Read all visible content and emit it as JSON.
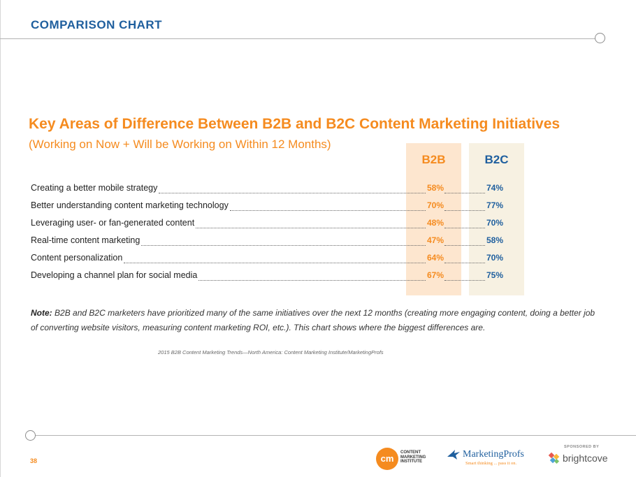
{
  "header": {
    "section_label": "COMPARISON CHART"
  },
  "chart": {
    "title": "Key Areas of Difference Between B2B and B2C Content Marketing Initiatives",
    "subtitle": "(Working on Now + Will be Working on Within 12 Months)",
    "columns": [
      "B2B",
      "B2C"
    ],
    "rows": [
      {
        "label": "Creating a better mobile strategy",
        "b2b": "58%",
        "b2c": "74%"
      },
      {
        "label": "Better understanding content marketing technology",
        "b2b": "70%",
        "b2c": "77%"
      },
      {
        "label": "Leveraging user- or fan-generated content",
        "b2b": "48%",
        "b2c": "70%"
      },
      {
        "label": "Real-time content marketing",
        "b2b": "47%",
        "b2c": "58%"
      },
      {
        "label": "Content personalization",
        "b2b": "64%",
        "b2c": "70%"
      },
      {
        "label": "Developing a channel plan for social media",
        "b2b": "67%",
        "b2c": "75%"
      }
    ]
  },
  "note": {
    "lead": "Note:",
    "text": "B2B and B2C marketers have prioritized many of the same initiatives over the next 12 months (creating more engaging content, doing a better job of converting website visitors, measuring content marketing ROI, etc.). This chart shows where the biggest differences are."
  },
  "source": "2015 B2B Content Marketing Trends—North America: Content Marketing Institute/MarketingProfs",
  "footer": {
    "page_number": "38",
    "cmi_logo": "cm",
    "cmi_text": [
      "CONTENT",
      "MARKETING",
      "INSTITUTE"
    ],
    "marketingprofs_name": "MarketingProfs",
    "marketingprofs_tagline": "Smart thinking ... pass it on.",
    "sponsored_label": "SPONSORED BY",
    "brightcove_name": "brightcove"
  },
  "colors": {
    "orange": "#f58b1f",
    "blue": "#1f5f9e",
    "b2b_bg": "#fde6cf",
    "b2c_bg": "#f7f1e2"
  },
  "icons": {
    "marketingprofs": "bird-icon",
    "brightcove": "brightcove-mark-icon",
    "cmi": "cmi-circle-icon"
  }
}
